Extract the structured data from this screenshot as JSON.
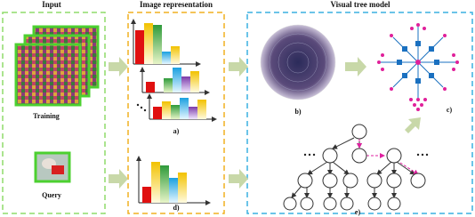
{
  "input": {
    "title": "Input",
    "training": "Training",
    "query": "Query"
  },
  "representation": {
    "title": "Image representation",
    "label_a": "a)",
    "label_d": "d)"
  },
  "tree": {
    "title": "Visual tree model",
    "label_b": "b)",
    "label_c": "c)",
    "label_e": "e)"
  }
}
